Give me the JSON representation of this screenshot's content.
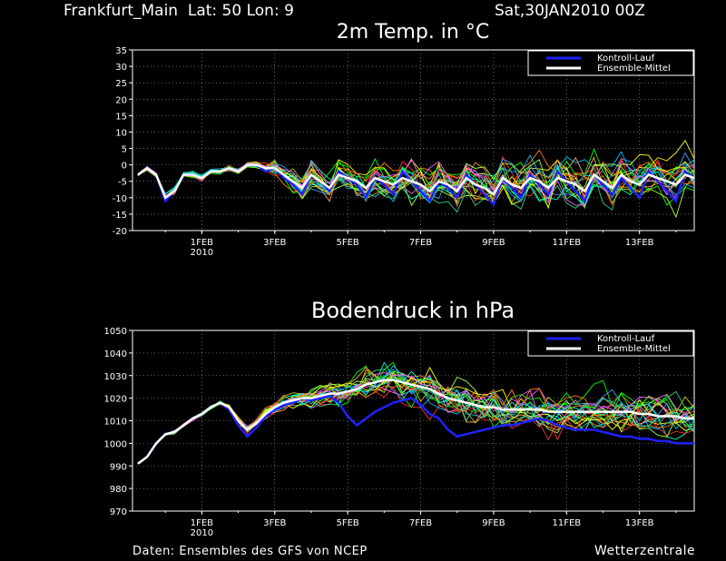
{
  "header": {
    "location": "Frankfurt_Main  Lat: 50 Lon: 9",
    "run": "Sat,30JAN2010 00Z"
  },
  "footer": {
    "source": "Daten: Ensembles des GFS von NCEP",
    "brand": "Wetterzentrale"
  },
  "colors": {
    "background": "#000000",
    "control": "#2020ff",
    "mean": "#ffffff",
    "grid": "#aaaaaa",
    "members": [
      "#ff3030",
      "#00ff00",
      "#ffff00",
      "#00c0ff",
      "#ff8000",
      "#00ffc0",
      "#a0ff40",
      "#ff60ff",
      "#40a0ff",
      "#ffa060",
      "#c0c000",
      "#30d080"
    ]
  },
  "chart_data": [
    {
      "type": "line",
      "title": "2m Temp. in °C",
      "x_tick_labels": [
        "1FEB",
        "3FEB",
        "5FEB",
        "7FEB",
        "9FEB",
        "11FEB",
        "13FEB"
      ],
      "x_tick_sublabels": [
        "2010",
        "",
        "",
        "",
        "",
        "",
        ""
      ],
      "x_tick_days": [
        2,
        4,
        6,
        8,
        10,
        12,
        14
      ],
      "x_range_days": [
        0.1,
        15.5
      ],
      "ylim": [
        -20,
        35
      ],
      "y_ticks": [
        -20,
        -15,
        -10,
        -5,
        0,
        5,
        10,
        15,
        20,
        25,
        30,
        35
      ],
      "grid": true,
      "legend_position": "top-right",
      "legend": [
        "Kontroll-Lauf",
        "Ensemble-Mittel"
      ],
      "x": [
        0.25,
        0.5,
        0.75,
        1.0,
        1.25,
        1.5,
        1.75,
        2.0,
        2.25,
        2.5,
        2.75,
        3.0,
        3.25,
        3.5,
        3.75,
        4.0,
        4.25,
        4.5,
        4.75,
        5.0,
        5.25,
        5.5,
        5.75,
        6.0,
        6.25,
        6.5,
        6.75,
        7.0,
        7.25,
        7.5,
        7.75,
        8.0,
        8.25,
        8.5,
        8.75,
        9.0,
        9.25,
        9.5,
        9.75,
        10.0,
        10.25,
        10.5,
        10.75,
        11.0,
        11.25,
        11.5,
        11.75,
        12.0,
        12.25,
        12.5,
        12.75,
        13.0,
        13.25,
        13.5,
        13.75,
        14.0,
        14.25,
        14.5,
        14.75,
        15.0,
        15.25,
        15.5
      ],
      "control": [
        -3,
        -1,
        -3,
        -11,
        -8,
        -3,
        -3,
        -4,
        -2,
        -2,
        -1,
        -2,
        0,
        0,
        -2,
        -1,
        -4,
        -6,
        -9,
        -3,
        -5,
        -8,
        -2,
        -4,
        -6,
        -10,
        -4,
        -6,
        -9,
        -2,
        -5,
        -8,
        -11,
        -5,
        -7,
        -10,
        -3,
        -6,
        -9,
        -12,
        -4,
        -7,
        -10,
        -3,
        -6,
        -9,
        -2,
        -5,
        -8,
        -11,
        -3,
        -6,
        -9,
        -4,
        -7,
        -10,
        -2,
        -5,
        -8,
        -11,
        -2,
        -4
      ],
      "mean": [
        -3,
        -1,
        -3,
        -10,
        -8,
        -3,
        -3,
        -4,
        -2,
        -2,
        -1,
        -2,
        0,
        0,
        -1,
        -1,
        -3,
        -5,
        -7,
        -3,
        -5,
        -7,
        -3,
        -4,
        -5,
        -7,
        -4,
        -5,
        -6,
        -4,
        -5,
        -6,
        -8,
        -5,
        -6,
        -8,
        -4,
        -6,
        -7,
        -9,
        -4,
        -6,
        -7,
        -4,
        -5,
        -7,
        -4,
        -5,
        -6,
        -8,
        -3,
        -5,
        -7,
        -3,
        -5,
        -6,
        -3,
        -4,
        -5,
        -6,
        -3,
        -4
      ],
      "members_spread": [
        0.5,
        0.8,
        1,
        1.5,
        1.5,
        1,
        1,
        1,
        1,
        1,
        1,
        1,
        1,
        1,
        2,
        3,
        4,
        5,
        5,
        5,
        5,
        6,
        6,
        6,
        6,
        6,
        6,
        6,
        7,
        7,
        7,
        7,
        7,
        7,
        7,
        7,
        7,
        7,
        7,
        7,
        8,
        8,
        8,
        8,
        8,
        8,
        8,
        8,
        8,
        8,
        8,
        8,
        8,
        8,
        8,
        8,
        8,
        8,
        8,
        8,
        8,
        8
      ],
      "members_count": 20
    },
    {
      "type": "line",
      "title": "Bodendruck in hPa",
      "x_tick_labels": [
        "1FEB",
        "3FEB",
        "5FEB",
        "7FEB",
        "9FEB",
        "11FEB",
        "13FEB"
      ],
      "x_tick_sublabels": [
        "2010",
        "",
        "",
        "",
        "",
        "",
        ""
      ],
      "x_tick_days": [
        2,
        4,
        6,
        8,
        10,
        12,
        14
      ],
      "x_range_days": [
        0.1,
        15.5
      ],
      "ylim": [
        970,
        1050
      ],
      "y_ticks": [
        970,
        980,
        990,
        1000,
        1010,
        1020,
        1030,
        1040,
        1050
      ],
      "grid": true,
      "legend_position": "top-right",
      "legend": [
        "Kontroll-Lauf",
        "Ensemble-Mittel"
      ],
      "x": [
        0.25,
        0.5,
        0.75,
        1.0,
        1.25,
        1.5,
        1.75,
        2.0,
        2.25,
        2.5,
        2.75,
        3.0,
        3.25,
        3.5,
        3.75,
        4.0,
        4.25,
        4.5,
        4.75,
        5.0,
        5.25,
        5.5,
        5.75,
        6.0,
        6.25,
        6.5,
        6.75,
        7.0,
        7.25,
        7.5,
        7.75,
        8.0,
        8.25,
        8.5,
        8.75,
        9.0,
        9.25,
        9.5,
        9.75,
        10.0,
        10.25,
        10.5,
        10.75,
        11.0,
        11.25,
        11.5,
        11.75,
        12.0,
        12.25,
        12.5,
        12.75,
        13.0,
        13.25,
        13.5,
        13.75,
        14.0,
        14.25,
        14.5,
        14.75,
        15.0,
        15.25,
        15.5
      ],
      "control": [
        991,
        994,
        1000,
        1004,
        1005,
        1008,
        1011,
        1013,
        1016,
        1018,
        1015,
        1008,
        1003,
        1007,
        1012,
        1015,
        1017,
        1018,
        1020,
        1019,
        1020,
        1021,
        1018,
        1012,
        1008,
        1011,
        1014,
        1016,
        1018,
        1019,
        1020,
        1017,
        1013,
        1011,
        1006,
        1003,
        1004,
        1005,
        1006,
        1007,
        1008,
        1008,
        1009,
        1010,
        1011,
        1010,
        1008,
        1007,
        1006,
        1006,
        1006,
        1005,
        1004,
        1003,
        1003,
        1002,
        1002,
        1001,
        1001,
        1000,
        1000,
        1000
      ],
      "mean": [
        991,
        994,
        1000,
        1004,
        1005,
        1008,
        1011,
        1013,
        1016,
        1018,
        1016,
        1010,
        1006,
        1009,
        1013,
        1016,
        1018,
        1019,
        1020,
        1020,
        1021,
        1022,
        1022,
        1023,
        1024,
        1026,
        1027,
        1028,
        1028,
        1027,
        1026,
        1025,
        1024,
        1022,
        1020,
        1019,
        1018,
        1017,
        1016,
        1016,
        1015,
        1015,
        1015,
        1015,
        1015,
        1014,
        1014,
        1014,
        1014,
        1014,
        1014,
        1014,
        1014,
        1014,
        1014,
        1013,
        1013,
        1012,
        1012,
        1012,
        1011,
        1011
      ],
      "members_spread": [
        0.5,
        0.5,
        1,
        1,
        1,
        1,
        1,
        1,
        1,
        1,
        2,
        3,
        3,
        3,
        4,
        4,
        5,
        5,
        5,
        6,
        6,
        7,
        7,
        8,
        8,
        9,
        9,
        9,
        10,
        10,
        10,
        10,
        10,
        10,
        11,
        11,
        11,
        11,
        11,
        11,
        11,
        11,
        11,
        11,
        11,
        11,
        11,
        11,
        11,
        11,
        11,
        11,
        11,
        11,
        11,
        11,
        11,
        11,
        11,
        11,
        11,
        11
      ],
      "members_count": 20
    }
  ]
}
